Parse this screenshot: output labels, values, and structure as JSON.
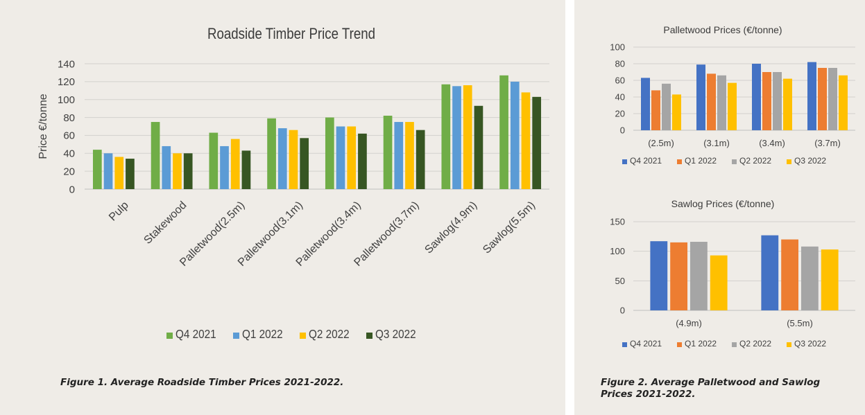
{
  "chart_data": [
    {
      "type": "bar",
      "title": "Roadside Timber Price Trend",
      "ylabel": "Price €/tonne",
      "xlabel": "",
      "ylim": [
        0,
        140
      ],
      "yticks": [
        "0",
        "20",
        "40",
        "60",
        "80",
        "100",
        "120",
        "140"
      ],
      "grid": true,
      "legend_position": "bottom",
      "categories": [
        "Pulp",
        "Stakewood",
        "Palletwood(2.5m)",
        "Palletwood(3.1m)",
        "Palletwood(3.4m)",
        "Palletwood(3.7m)",
        "Sawlog(4.9m)",
        "Sawlog(5.5m)"
      ],
      "series": [
        {
          "name": "Q4 2021",
          "color": "#70ad47",
          "values": [
            44,
            75,
            63,
            79,
            80,
            82,
            117,
            127
          ]
        },
        {
          "name": "Q1 2022",
          "color": "#5b9bd5",
          "values": [
            40,
            48,
            48,
            68,
            70,
            75,
            115,
            120
          ]
        },
        {
          "name": "Q2 2022",
          "color": "#ffc000",
          "values": [
            36,
            40,
            56,
            66,
            70,
            75,
            116,
            108
          ]
        },
        {
          "name": "Q3 2022",
          "color": "#375623",
          "values": [
            34,
            40,
            43,
            57,
            62,
            66,
            93,
            103
          ]
        }
      ]
    },
    {
      "type": "bar",
      "title": "Palletwood Prices (€/tonne)",
      "ylim": [
        0,
        100
      ],
      "yticks": [
        "0",
        "20",
        "40",
        "60",
        "80",
        "100"
      ],
      "grid": true,
      "legend_position": "bottom",
      "categories": [
        "(2.5m)",
        "(3.1m)",
        "(3.4m)",
        "(3.7m)"
      ],
      "series": [
        {
          "name": "Q4 2021",
          "color": "#4472c4",
          "values": [
            63,
            79,
            80,
            82
          ]
        },
        {
          "name": "Q1 2022",
          "color": "#ed7d31",
          "values": [
            48,
            68,
            70,
            75
          ]
        },
        {
          "name": "Q2 2022",
          "color": "#a5a5a5",
          "values": [
            56,
            66,
            70,
            75
          ]
        },
        {
          "name": "Q3 2022",
          "color": "#ffc000",
          "values": [
            43,
            57,
            62,
            66
          ]
        }
      ]
    },
    {
      "type": "bar",
      "title": "Sawlog Prices (€/tonne)",
      "ylim": [
        0,
        150
      ],
      "yticks": [
        "0",
        "50",
        "100",
        "150"
      ],
      "grid": true,
      "legend_position": "bottom",
      "categories": [
        "(4.9m)",
        "(5.5m)"
      ],
      "series": [
        {
          "name": "Q4 2021",
          "color": "#4472c4",
          "values": [
            117,
            127
          ]
        },
        {
          "name": "Q1 2022",
          "color": "#ed7d31",
          "values": [
            115,
            120
          ]
        },
        {
          "name": "Q2 2022",
          "color": "#a5a5a5",
          "values": [
            116,
            108
          ]
        },
        {
          "name": "Q3 2022",
          "color": "#ffc000",
          "values": [
            93,
            103
          ]
        }
      ]
    }
  ],
  "captions": {
    "figure1": "Figure 1. Average Roadside Timber Prices 2021-2022.",
    "figure2": "Figure 2. Average Palletwood and Sawlog Prices 2021-2022."
  }
}
